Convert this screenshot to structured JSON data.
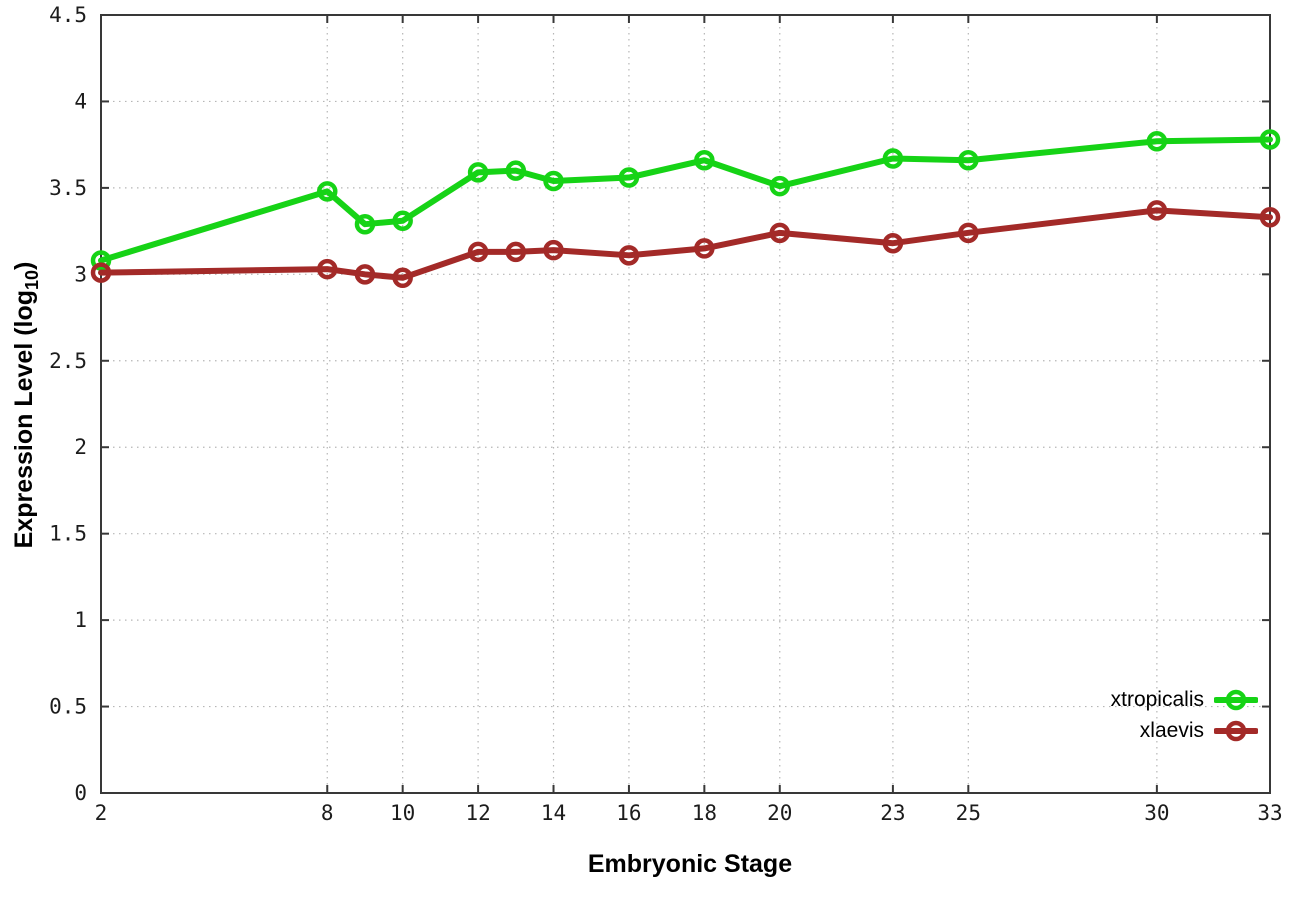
{
  "chart_data": {
    "type": "line",
    "title": "",
    "xlabel": "Embryonic Stage",
    "ylabel": "Expression Level (log10)",
    "ylabel_parts": {
      "prefix": "Expression Level (log",
      "sub": "10",
      "suffix": ")"
    },
    "x": [
      2,
      8,
      9,
      10,
      12,
      13,
      14,
      16,
      18,
      20,
      23,
      25,
      30,
      33
    ],
    "xticks": [
      2,
      8,
      10,
      12,
      14,
      16,
      18,
      20,
      23,
      25,
      30,
      33
    ],
    "yticks": [
      0,
      0.5,
      1,
      1.5,
      2,
      2.5,
      3,
      3.5,
      4,
      4.5
    ],
    "xlim": [
      2,
      33
    ],
    "ylim": [
      0,
      4.5
    ],
    "grid": true,
    "legend_position": "inside-bottom-right",
    "series": [
      {
        "name": "xtropicalis",
        "color": "#16d316",
        "values": [
          3.08,
          3.48,
          3.29,
          3.31,
          3.59,
          3.6,
          3.54,
          3.56,
          3.66,
          3.51,
          3.67,
          3.66,
          3.77,
          3.78
        ]
      },
      {
        "name": "xlaevis",
        "color": "#a32a28",
        "values": [
          3.01,
          3.03,
          3.0,
          2.98,
          3.13,
          3.13,
          3.14,
          3.11,
          3.15,
          3.24,
          3.18,
          3.24,
          3.37,
          3.33
        ]
      }
    ]
  },
  "style": {
    "background": "#ffffff",
    "axis_color": "#383838",
    "grid_color": "#b6b6b6",
    "tick_label_color": "#1c1c1c"
  }
}
